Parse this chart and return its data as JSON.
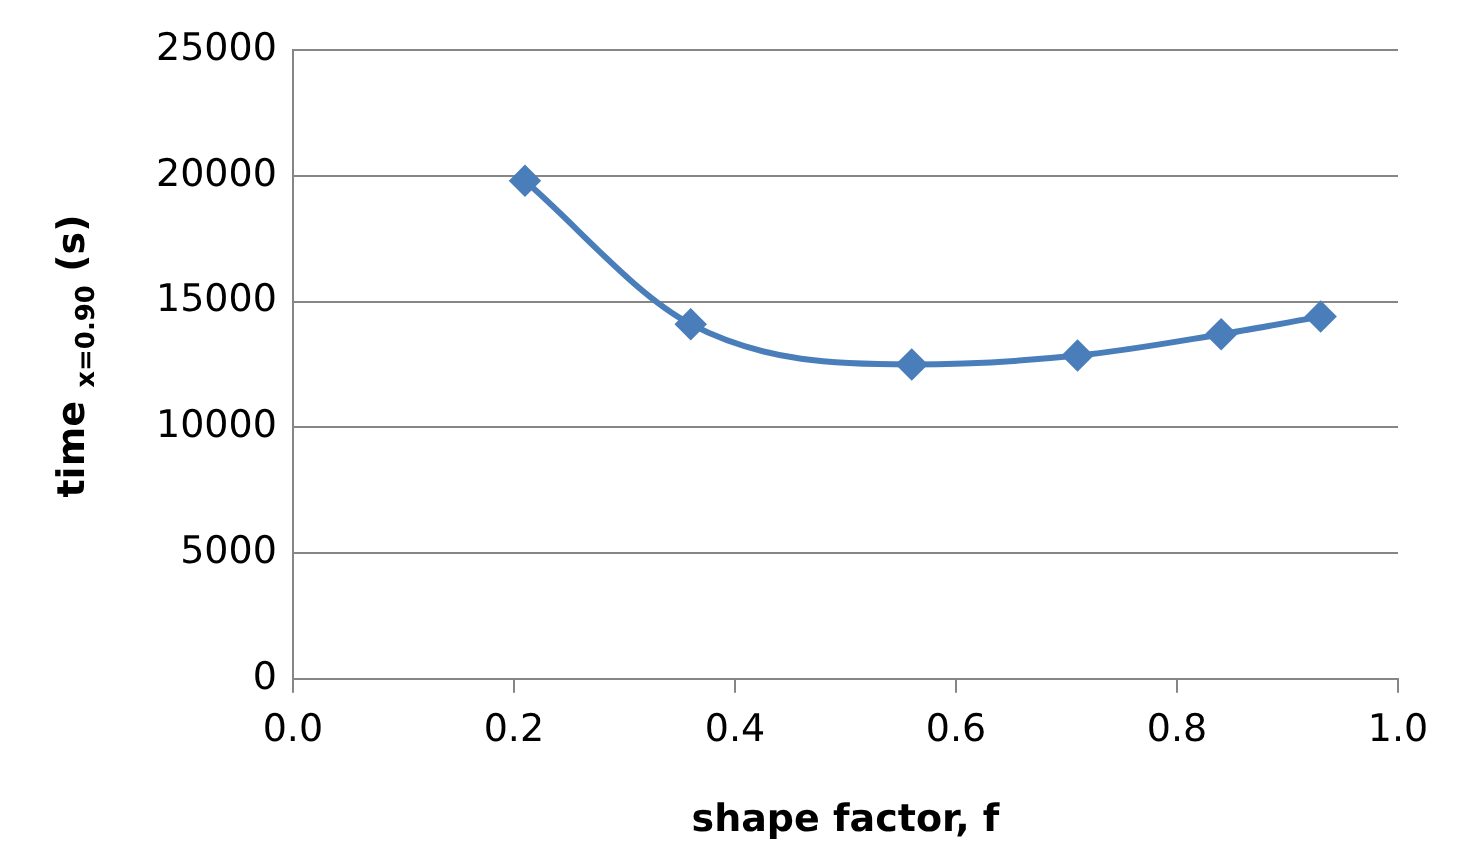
{
  "chart_data": {
    "type": "line",
    "xlabel": "shape factor, f",
    "ylabel": "time $_{x=0.90}$ (s)",
    "x": [
      0.21,
      0.36,
      0.56,
      0.71,
      0.84,
      0.93
    ],
    "series": [
      {
        "color": "#4a7ebb",
        "values": [
          19800,
          14100,
          12500,
          12850,
          13700,
          14400
        ]
      }
    ],
    "xlim": [
      0,
      1
    ],
    "xticks": [
      {
        "value": 0,
        "label": "0.0"
      },
      {
        "value": 0.2,
        "label": "0.2"
      },
      {
        "value": 0.4,
        "label": "0.4"
      },
      {
        "value": 0.6,
        "label": "0.6"
      },
      {
        "value": 0.8,
        "label": "0.8"
      },
      {
        "value": 1,
        "label": "1.0"
      }
    ],
    "ylim": [
      0,
      25000
    ],
    "yticks": [
      0,
      5000,
      10000,
      15000,
      20000,
      25000
    ],
    "grid": "y",
    "marker": "diamond",
    "line_style": "solid",
    "legend": false
  }
}
